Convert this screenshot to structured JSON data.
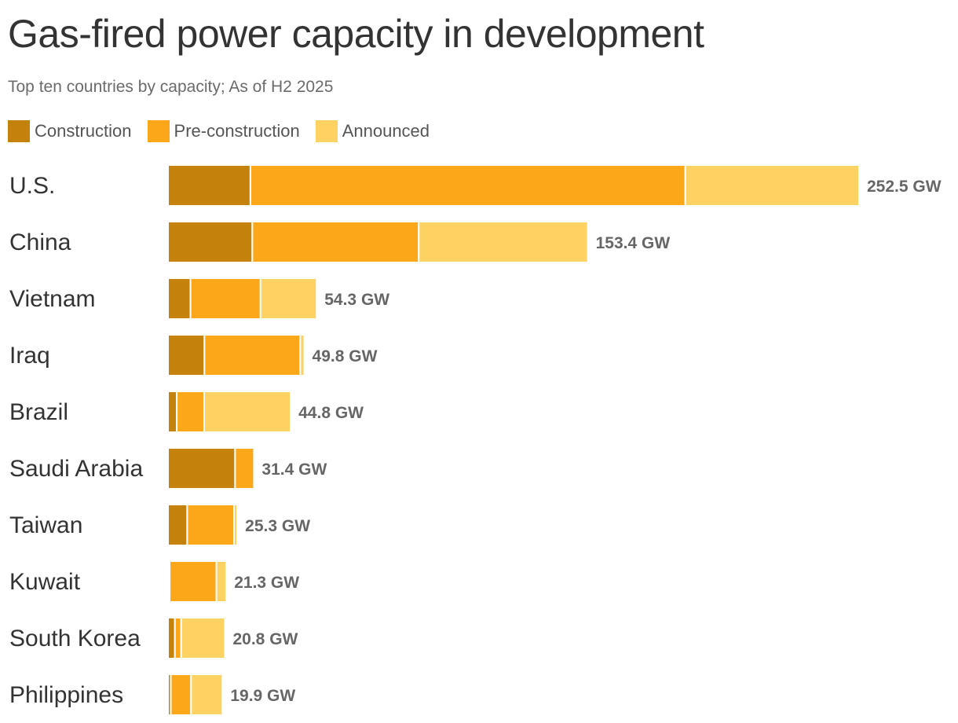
{
  "chart_data": {
    "type": "bar",
    "orientation": "horizontal",
    "stacked": true,
    "title": "Gas-fired power capacity in development",
    "subtitle": "Top ten countries by capacity; As of H2 2025",
    "categories": [
      "U.S.",
      "China",
      "Vietnam",
      "Iraq",
      "Brazil",
      "Saudi Arabia",
      "Taiwan",
      "Kuwait",
      "South Korea",
      "Philippines"
    ],
    "series": [
      {
        "name": "Construction",
        "color": "#c4820d",
        "values": [
          30.1,
          30.8,
          8.2,
          13.3,
          3.2,
          24.5,
          7.0,
          0.6,
          2.5,
          1.0
        ]
      },
      {
        "name": "Pre-construction",
        "color": "#fca619",
        "values": [
          158.9,
          60.8,
          25.6,
          35.0,
          10.0,
          6.9,
          17.1,
          17.1,
          2.3,
          7.4
        ]
      },
      {
        "name": "Announced",
        "color": "#fed163",
        "values": [
          63.5,
          61.8,
          20.5,
          1.5,
          31.6,
          0.0,
          1.2,
          3.6,
          16.0,
          11.5
        ]
      }
    ],
    "totals": [
      "252.5 GW",
      "153.4 GW",
      "54.3 GW",
      "49.8 GW",
      "44.8 GW",
      "31.4 GW",
      "25.3 GW",
      "21.3 GW",
      "20.8 GW",
      "19.9 GW"
    ],
    "xlim": [
      0,
      252.5
    ],
    "legend_position": "top-left",
    "grid": false
  }
}
